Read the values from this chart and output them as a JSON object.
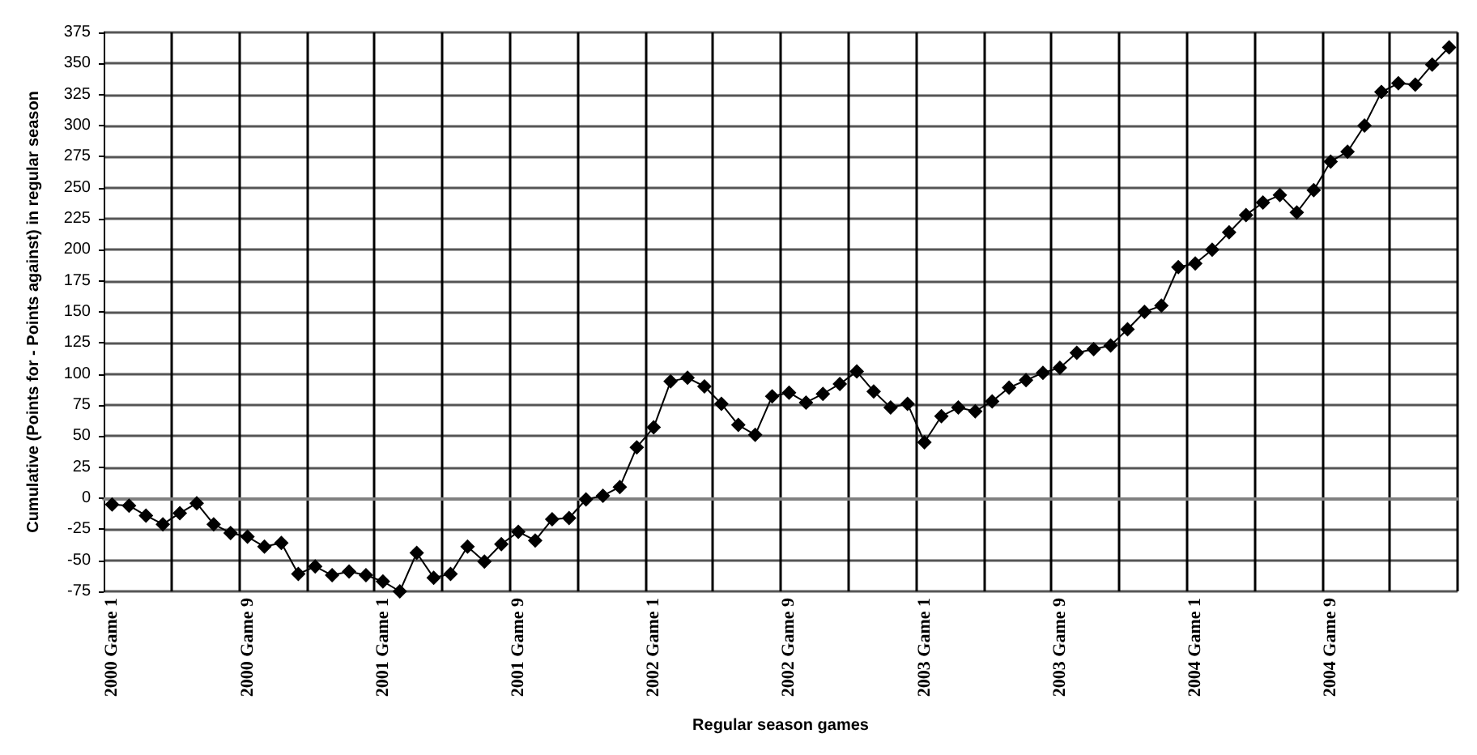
{
  "chart_data": {
    "type": "line",
    "xlabel": "Regular season games",
    "ylabel": "Cumulative (Points for - Points against) in regular season",
    "categories": [
      "2000 Game 1",
      null,
      null,
      null,
      null,
      null,
      null,
      null,
      "2000 Game 9",
      null,
      null,
      null,
      null,
      null,
      null,
      null,
      "2001 Game 1",
      null,
      null,
      null,
      null,
      null,
      null,
      null,
      "2001 Game 9",
      null,
      null,
      null,
      null,
      null,
      null,
      null,
      "2002 Game 1",
      null,
      null,
      null,
      null,
      null,
      null,
      null,
      "2002 Game 9",
      null,
      null,
      null,
      null,
      null,
      null,
      null,
      "2003 Game 1",
      null,
      null,
      null,
      null,
      null,
      null,
      null,
      "2003 Game 9",
      null,
      null,
      null,
      null,
      null,
      null,
      null,
      "2004 Game 1",
      null,
      null,
      null,
      null,
      null,
      null,
      null,
      "2004 Game 9",
      null,
      null,
      null,
      null,
      null,
      null,
      null
    ],
    "series": [
      {
        "color": "#000000",
        "values": [
          -5,
          -6,
          -14,
          -21,
          -12,
          -4,
          -21,
          -28,
          -31,
          -39,
          -36,
          -61,
          -55,
          -62,
          -59,
          -62,
          -67,
          -75,
          -44,
          -64,
          -61,
          -39,
          -51,
          -37,
          -27,
          -34,
          -17,
          -16,
          -1,
          2,
          9,
          41,
          57,
          94,
          97,
          90,
          76,
          59,
          51,
          82,
          85,
          77,
          84,
          92,
          102,
          86,
          73,
          76,
          45,
          66,
          73,
          70,
          78,
          89,
          95,
          101,
          105,
          117,
          120,
          123,
          136,
          150,
          155,
          186,
          189,
          200,
          214,
          228,
          238,
          244,
          230,
          248,
          271,
          279,
          300,
          327,
          334,
          333,
          349,
          363
        ]
      }
    ],
    "ylim": [
      -75,
      375
    ],
    "yticks": [
      -75,
      -50,
      -25,
      0,
      25,
      50,
      75,
      100,
      125,
      150,
      175,
      200,
      225,
      250,
      275,
      300,
      325,
      350,
      375
    ],
    "grid": true,
    "marker": "diamond",
    "line_style": "solid"
  }
}
